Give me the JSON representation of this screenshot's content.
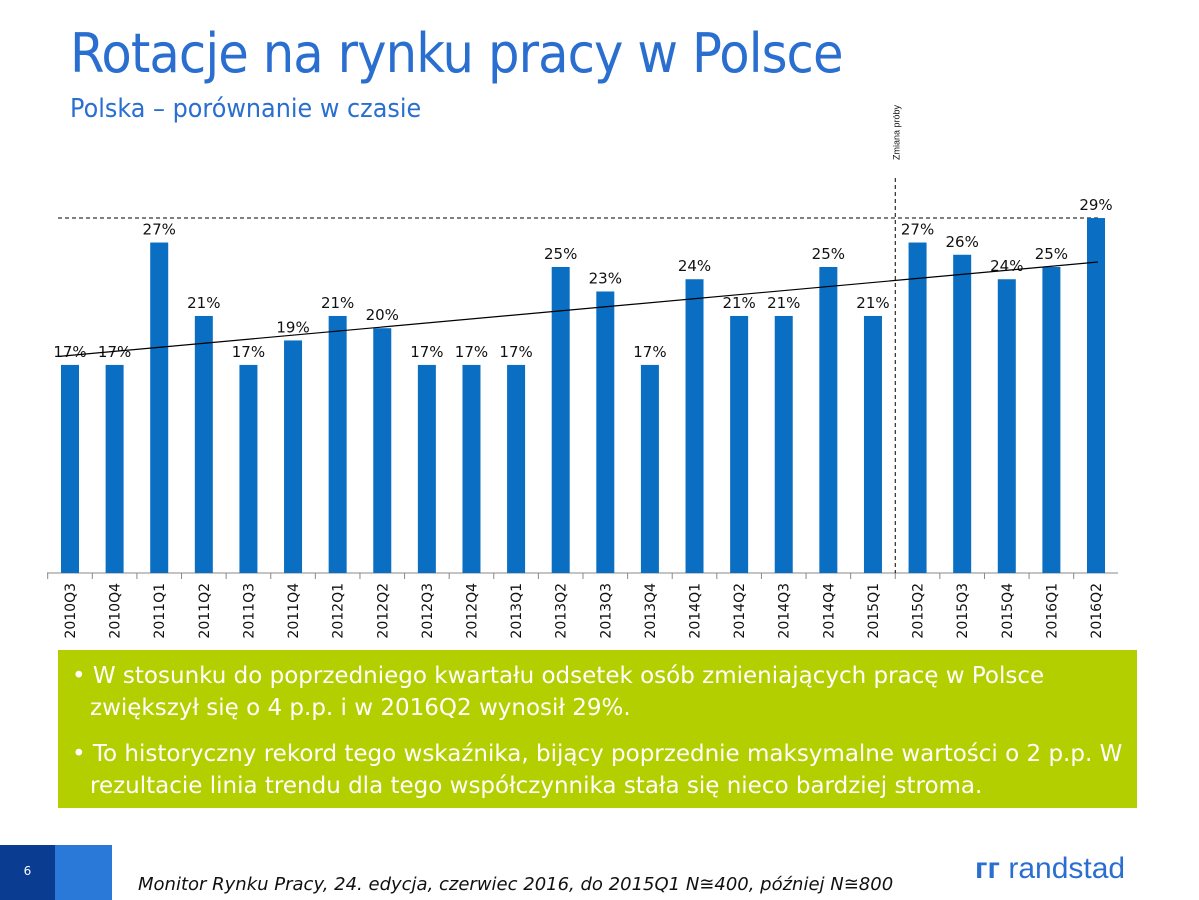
{
  "title": "Rotacje na rynku pracy w Polsce",
  "subtitle": "Polska – porównanie w czasie",
  "chart_data": {
    "type": "bar",
    "categories": [
      "2010Q3",
      "2010Q4",
      "2011Q1",
      "2011Q2",
      "2011Q3",
      "2011Q4",
      "2012Q1",
      "2012Q2",
      "2012Q3",
      "2012Q4",
      "2013Q1",
      "2013Q2",
      "2013Q3",
      "2013Q4",
      "2014Q1",
      "2014Q2",
      "2014Q3",
      "2014Q4",
      "2015Q1",
      "2015Q2",
      "2015Q3",
      "2015Q4",
      "2016Q1",
      "2016Q2"
    ],
    "values": [
      17,
      17,
      27,
      21,
      17,
      19,
      21,
      20,
      17,
      17,
      17,
      25,
      23,
      17,
      24,
      21,
      21,
      25,
      21,
      27,
      26,
      24,
      25,
      29
    ],
    "data_labels": [
      "17%",
      "17%",
      "27%",
      "21%",
      "17%",
      "19%",
      "21%",
      "20%",
      "17%",
      "17%",
      "17%",
      "25%",
      "23%",
      "17%",
      "24%",
      "21%",
      "21%",
      "25%",
      "21%",
      "27%",
      "26%",
      "24%",
      "25%",
      "29%"
    ],
    "bar_color": "#0a6fc2",
    "trendline": true,
    "reference_line_value": 29,
    "annotation": {
      "text": "Zmiana próby",
      "between": [
        "2015Q1",
        "2015Q2"
      ]
    },
    "ylim": [
      0,
      30
    ]
  },
  "note": {
    "bullets": [
      "• W stosunku do poprzedniego kwartału odsetek osób zmieniających pracę w Polsce zwiększył się o 4 p.p. i w 2016Q2 wynosił 29%.",
      "• To historyczny rekord tego wskaźnika, bijący poprzednie maksymalne wartości o 2 p.p. W rezultacie linia trendu dla tego współczynnika stała się nieco bardziej stroma."
    ],
    "color": "#b3cf00"
  },
  "footer": {
    "page": "6",
    "source": "Monitor Rynku Pracy, 24. edycja, czerwiec 2016, do 2015Q1 N≅400, później N≅800",
    "logo": "randstad"
  }
}
